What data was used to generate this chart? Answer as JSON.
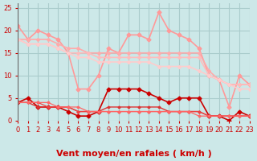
{
  "title": "",
  "xlabel": "Vent moyen/en rafales ( km/h )",
  "ylabel": "",
  "bg_color": "#cce8e8",
  "grid_color": "#aacccc",
  "xlim": [
    0,
    23
  ],
  "ylim": [
    0,
    26
  ],
  "yticks": [
    0,
    5,
    10,
    15,
    20,
    25
  ],
  "xticks": [
    0,
    1,
    2,
    3,
    4,
    5,
    6,
    7,
    8,
    9,
    10,
    11,
    12,
    13,
    14,
    15,
    16,
    17,
    18,
    19,
    20,
    21,
    22,
    23
  ],
  "lines": [
    {
      "name": "rafales_high",
      "x": [
        0,
        1,
        2,
        3,
        4,
        5,
        6,
        7,
        8,
        9,
        10,
        11,
        12,
        13,
        14,
        15,
        16,
        17,
        18,
        19,
        20,
        21,
        22,
        23
      ],
      "y": [
        21,
        18,
        20,
        19,
        18,
        15,
        7,
        7,
        10,
        16,
        15,
        19,
        19,
        18,
        24,
        20,
        19,
        18,
        16,
        10,
        9,
        3,
        10,
        8
      ],
      "color": "#ff9999",
      "lw": 1.2,
      "marker": "D",
      "ms": 2.5
    },
    {
      "name": "rafales_mid1",
      "x": [
        0,
        1,
        2,
        3,
        4,
        5,
        6,
        7,
        8,
        9,
        10,
        11,
        12,
        13,
        14,
        15,
        16,
        17,
        18,
        19,
        20,
        21,
        22,
        23
      ],
      "y": [
        18,
        18,
        18,
        18,
        17,
        16,
        16,
        15,
        15,
        15,
        15,
        15,
        15,
        15,
        15,
        15,
        15,
        15,
        15,
        11,
        9,
        8,
        8,
        8
      ],
      "color": "#ffaaaa",
      "lw": 1.2,
      "marker": "D",
      "ms": 2.0
    },
    {
      "name": "rafales_mid2",
      "x": [
        0,
        1,
        2,
        3,
        4,
        5,
        6,
        7,
        8,
        9,
        10,
        11,
        12,
        13,
        14,
        15,
        16,
        17,
        18,
        19,
        20,
        21,
        22,
        23
      ],
      "y": [
        18,
        17,
        17,
        17,
        16,
        15,
        15,
        15,
        14,
        14,
        14,
        14,
        14,
        14,
        14,
        14,
        14,
        14,
        14,
        10,
        9,
        8,
        8,
        8
      ],
      "color": "#ffbbbb",
      "lw": 1.2,
      "marker": "D",
      "ms": 2.0
    },
    {
      "name": "rafales_low",
      "x": [
        0,
        1,
        2,
        3,
        4,
        5,
        6,
        7,
        8,
        9,
        10,
        11,
        12,
        13,
        14,
        15,
        16,
        17,
        18,
        19,
        20,
        21,
        22,
        23
      ],
      "y": [
        18,
        17,
        17,
        17,
        16,
        15,
        14,
        14,
        13,
        13,
        13,
        13,
        13,
        13,
        12,
        12,
        12,
        12,
        11,
        10,
        9,
        8,
        7,
        7
      ],
      "color": "#ffcccc",
      "lw": 1.2,
      "marker": "D",
      "ms": 2.0
    },
    {
      "name": "vent_high",
      "x": [
        0,
        1,
        2,
        3,
        4,
        5,
        6,
        7,
        8,
        9,
        10,
        11,
        12,
        13,
        14,
        15,
        16,
        17,
        18,
        19,
        20,
        21,
        22,
        23
      ],
      "y": [
        4,
        5,
        3,
        3,
        3,
        2,
        1,
        1,
        2,
        7,
        7,
        7,
        7,
        6,
        5,
        4,
        5,
        5,
        5,
        1,
        1,
        0,
        2,
        1
      ],
      "color": "#cc0000",
      "lw": 1.2,
      "marker": "D",
      "ms": 2.5
    },
    {
      "name": "vent_mid",
      "x": [
        0,
        1,
        2,
        3,
        4,
        5,
        6,
        7,
        8,
        9,
        10,
        11,
        12,
        13,
        14,
        15,
        16,
        17,
        18,
        19,
        20,
        21,
        22,
        23
      ],
      "y": [
        4,
        4,
        3,
        3,
        3,
        3,
        2,
        2,
        2,
        3,
        3,
        3,
        3,
        3,
        3,
        2,
        2,
        2,
        2,
        1,
        1,
        1,
        1,
        1
      ],
      "color": "#dd3333",
      "lw": 1.0,
      "marker": "D",
      "ms": 1.5
    },
    {
      "name": "vent_low1",
      "x": [
        0,
        1,
        2,
        3,
        4,
        5,
        6,
        7,
        8,
        9,
        10,
        11,
        12,
        13,
        14,
        15,
        16,
        17,
        18,
        19,
        20,
        21,
        22,
        23
      ],
      "y": [
        4,
        4,
        4,
        3,
        3,
        3,
        2,
        2,
        2,
        2,
        2,
        2,
        2,
        2,
        2,
        2,
        2,
        2,
        2,
        1,
        1,
        1,
        1,
        1
      ],
      "color": "#ee4444",
      "lw": 0.9,
      "marker": "D",
      "ms": 1.5
    },
    {
      "name": "vent_low2",
      "x": [
        0,
        1,
        2,
        3,
        4,
        5,
        6,
        7,
        8,
        9,
        10,
        11,
        12,
        13,
        14,
        15,
        16,
        17,
        18,
        19,
        20,
        21,
        22,
        23
      ],
      "y": [
        4,
        4,
        4,
        4,
        3,
        3,
        3,
        2,
        2,
        2,
        2,
        2,
        2,
        2,
        2,
        2,
        2,
        2,
        1,
        1,
        1,
        1,
        1,
        1
      ],
      "color": "#ff6666",
      "lw": 0.9,
      "marker": "D",
      "ms": 1.5
    }
  ],
  "arrow_color": "#cc0000",
  "xlabel_color": "#cc0000",
  "xlabel_fontsize": 8,
  "tick_color": "#cc0000",
  "tick_fontsize": 6
}
